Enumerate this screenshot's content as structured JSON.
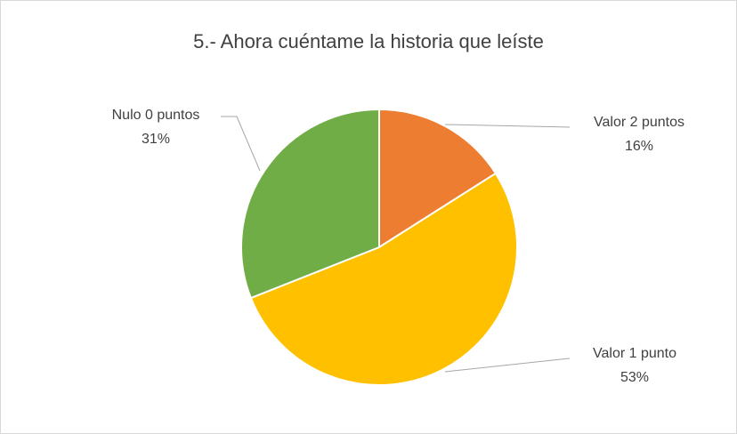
{
  "chart_data": {
    "type": "pie",
    "title": "5.- Ahora cuéntame la historia que leíste",
    "categories": [
      "Valor 2 puntos",
      "Valor 1 punto",
      "Nulo 0 puntos"
    ],
    "values": [
      16,
      53,
      31
    ],
    "value_labels": [
      "16%",
      "53%",
      "31%"
    ],
    "colors": [
      "#ED7D31",
      "#FFC000",
      "#70AD47"
    ]
  }
}
